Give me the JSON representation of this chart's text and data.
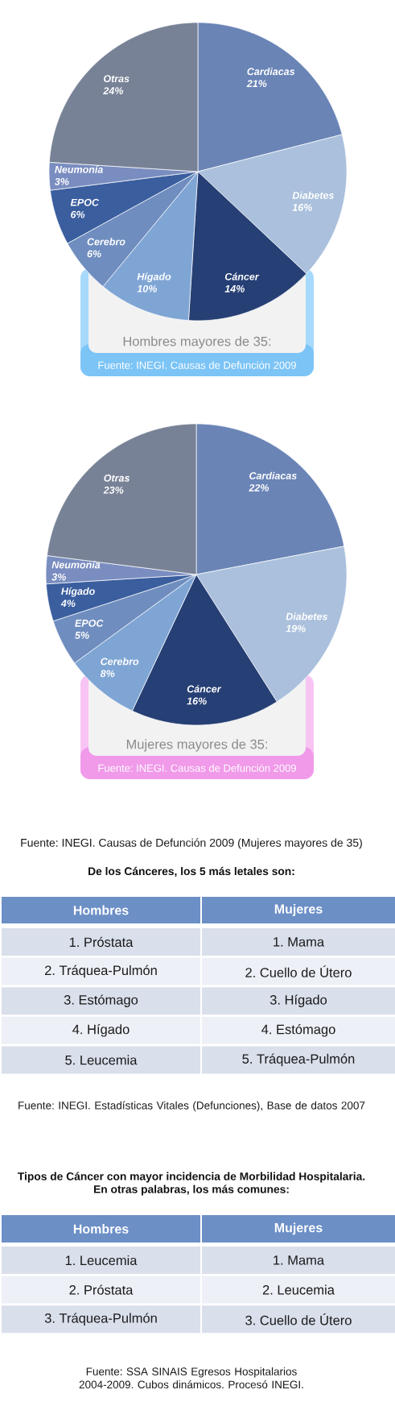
{
  "chart_data": [
    {
      "type": "pie",
      "title": "Hombres mayores de 35:",
      "categories": [
        "Cardiacas",
        "Diabetes",
        "Cáncer",
        "Hígado",
        "Cerebro",
        "EPOC",
        "Neumonía",
        "Otras"
      ],
      "values": [
        21,
        16,
        14,
        10,
        6,
        6,
        3,
        24
      ],
      "value_labels": [
        "21%",
        "16%",
        "14%",
        "10%",
        "6%",
        "6%",
        "3%",
        "24%"
      ],
      "colors": [
        "#6a84b6",
        "#aac0dc",
        "#263f74",
        "#7fa5d4",
        "#6f8dbf",
        "#3a5e9e",
        "#7a8dc0",
        "#788296"
      ],
      "annotations": [
        "Fuente: INEGI. Causas de Defunción 2009"
      ]
    },
    {
      "type": "pie",
      "title": "Mujeres mayores de 35:",
      "categories": [
        "Cardiacas",
        "Diabetes",
        "Cáncer",
        "Cerebro",
        "EPOC",
        "Hígado",
        "Neumonía",
        "Otras"
      ],
      "values": [
        22,
        19,
        16,
        8,
        5,
        4,
        3,
        23
      ],
      "value_labels": [
        "22%",
        "19%",
        "16%",
        "8%",
        "5%",
        "4%",
        "3%",
        "23%"
      ],
      "colors": [
        "#6a84b6",
        "#aac0dc",
        "#263f74",
        "#7fa5d4",
        "#6f8dbf",
        "#3a5e9e",
        "#7a8dc0",
        "#788296"
      ],
      "annotations": [
        "Fuente: INEGI. Causas de Defunción 2009",
        "Fuente: INEGI. Causas de Defunción 2009 (Mujeres mayores de 35)"
      ]
    },
    {
      "type": "other",
      "title": "De los Cánceres, los 5 más letales son:",
      "categories": [
        "Hombres",
        "Mujeres"
      ],
      "cell_labels": [
        [
          "1. Próstata",
          "1. Mama"
        ],
        [
          "2. Tráquea-Pulmón",
          "2. Cuello de Útero"
        ],
        [
          "3. Estómago",
          "3. Hígado"
        ],
        [
          "4. Hígado",
          "4. Estómago"
        ],
        [
          "5. Leucemia",
          "5. Tráquea-Pulmón"
        ]
      ],
      "annotations": [
        "Fuente: INEGI. Estadísticas Vitales (Defunciones), Base de datos 2007"
      ]
    },
    {
      "type": "other",
      "title": "Tipos de Cáncer con mayor incidencia de Morbilidad Hospitalaria.",
      "subtitle": "En otras palabras, los más comunes:",
      "categories": [
        "Hombres",
        "Mujeres"
      ],
      "cell_labels": [
        [
          "1. Leucemia",
          "1. Mama"
        ],
        [
          "2. Próstata",
          "2. Leucemia"
        ],
        [
          "3. Tráquea-Pulmón",
          "3. Cuello de Útero"
        ]
      ],
      "annotations": [
        "Fuente: SSA SINAIS Egresos Hospitalarios 2004-2009. Cubos dinámicos. Procesó INEGI."
      ]
    }
  ]
}
